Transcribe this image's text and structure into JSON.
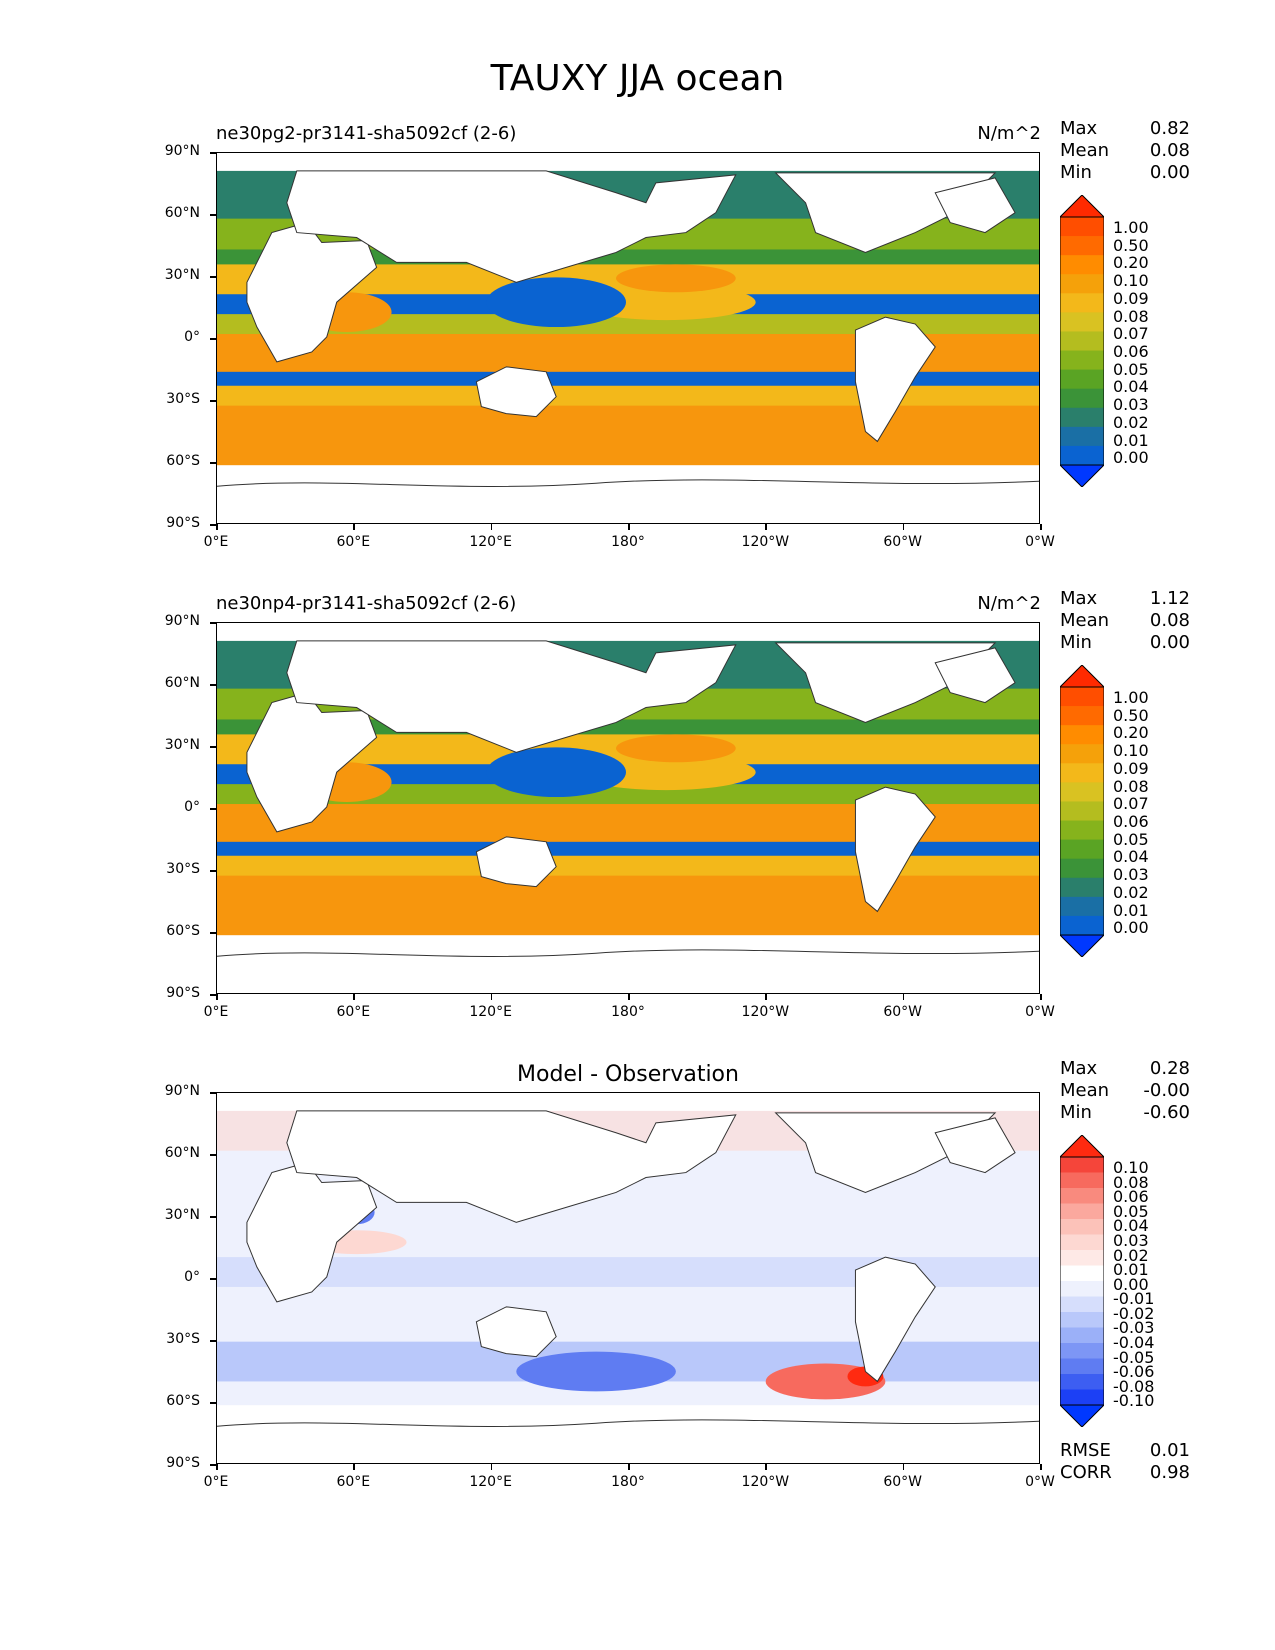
{
  "title": "TAUXY JJA ocean",
  "axes": {
    "yticks": [
      "90°N",
      "60°N",
      "30°N",
      "0°",
      "30°S",
      "60°S",
      "90°S"
    ],
    "xticks": [
      "0°E",
      "60°E",
      "120°E",
      "180°",
      "120°W",
      "60°W",
      "0°W"
    ]
  },
  "panels": [
    {
      "left_title": "ne30pg2-pr3141-sha5092cf (2-6)",
      "units": "N/m^2",
      "stats": [
        {
          "label": "Max",
          "value": "0.82"
        },
        {
          "label": "Mean",
          "value": "0.08"
        },
        {
          "label": "Min",
          "value": "0.00"
        }
      ]
    },
    {
      "left_title": "ne30np4-pr3141-sha5092cf (2-6)",
      "units": "N/m^2",
      "stats": [
        {
          "label": "Max",
          "value": "1.12"
        },
        {
          "label": "Mean",
          "value": "0.08"
        },
        {
          "label": "Min",
          "value": "0.00"
        }
      ]
    },
    {
      "center_title": "Model - Observation",
      "stats": [
        {
          "label": "Max",
          "value": "0.28"
        },
        {
          "label": "Mean",
          "value": "-0.00"
        },
        {
          "label": "Min",
          "value": "-0.60"
        }
      ],
      "metrics": [
        {
          "label": "RMSE",
          "value": "0.01"
        },
        {
          "label": "CORR",
          "value": "0.98"
        }
      ]
    }
  ],
  "colorbar_main": {
    "labels": [
      "1.00",
      "0.50",
      "0.20",
      "0.10",
      "0.09",
      "0.08",
      "0.07",
      "0.06",
      "0.05",
      "0.04",
      "0.03",
      "0.02",
      "0.01",
      "0.00"
    ],
    "colors": [
      "#ff2a00",
      "#ff4e00",
      "#ff6a00",
      "#ff8c00",
      "#f5a10a",
      "#f3b81a",
      "#d9c222",
      "#b4bd1f",
      "#86b31c",
      "#5aa424",
      "#3b9338",
      "#2a7f6b",
      "#1a6fa5",
      "#0a63d1",
      "#0038ff"
    ]
  },
  "colorbar_diff": {
    "labels": [
      "0.10",
      "0.08",
      "0.06",
      "0.05",
      "0.04",
      "0.03",
      "0.02",
      "0.01",
      "0.00",
      "-0.01",
      "-0.02",
      "-0.03",
      "-0.04",
      "-0.05",
      "-0.06",
      "-0.08",
      "-0.10"
    ],
    "colors": [
      "#ff2a10",
      "#f5453a",
      "#f76a5e",
      "#f98a7e",
      "#fba89e",
      "#fcc2b9",
      "#fdd8d2",
      "#fee9e6",
      "#ffffff",
      "#eef1fd",
      "#d6defc",
      "#b9c8fa",
      "#9bb0f8",
      "#7d96f5",
      "#5f7cf2",
      "#3d5ef2",
      "#1c40f5",
      "#0038ff"
    ]
  },
  "chart_data": [
    {
      "type": "heatmap",
      "title": "ne30pg2-pr3141-sha5092cf (2-6)",
      "units": "N/m^2",
      "xlabel": "",
      "ylabel": "",
      "xlim": [
        0,
        360
      ],
      "ylim": [
        -90,
        90
      ],
      "stats": {
        "max": 0.82,
        "mean": 0.08,
        "min": 0.0
      }
    },
    {
      "type": "heatmap",
      "title": "ne30np4-pr3141-sha5092cf (2-6)",
      "units": "N/m^2",
      "xlim": [
        0,
        360
      ],
      "ylim": [
        -90,
        90
      ],
      "stats": {
        "max": 1.12,
        "mean": 0.08,
        "min": 0.0
      }
    },
    {
      "type": "heatmap",
      "title": "Model - Observation",
      "xlim": [
        0,
        360
      ],
      "ylim": [
        -90,
        90
      ],
      "stats": {
        "max": 0.28,
        "mean": -0.0,
        "min": -0.6,
        "rmse": 0.01,
        "corr": 0.98
      }
    }
  ]
}
